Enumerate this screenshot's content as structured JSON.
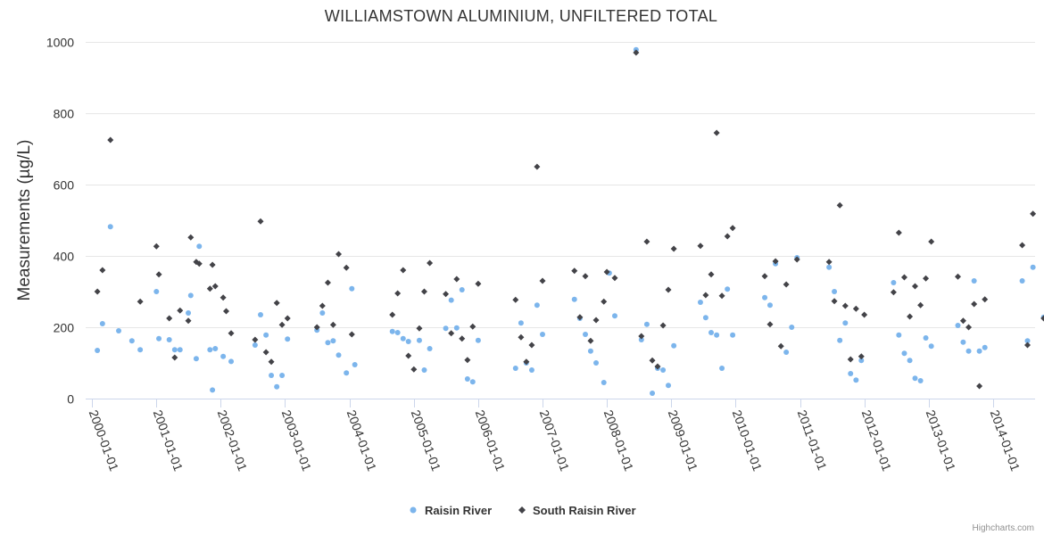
{
  "chart_data": {
    "type": "scatter",
    "title": "WILLIAMSTOWN ALUMINIUM, UNFILTERED TOTAL",
    "xlabel": "",
    "ylabel": "Measurements (µg/L)",
    "ylim": [
      0,
      1000
    ],
    "yticks": [
      "0",
      "200",
      "400",
      "600",
      "800",
      "1000"
    ],
    "xlim": [
      "2000-01-01",
      "2014-12-31"
    ],
    "xticks": [
      "2000-01-01",
      "2001-01-01",
      "2002-01-01",
      "2003-01-01",
      "2004-01-01",
      "2005-01-01",
      "2006-01-01",
      "2007-01-01",
      "2008-01-01",
      "2009-01-01",
      "2010-01-01",
      "2011-01-01",
      "2012-01-01",
      "2013-01-01",
      "2014-01-01"
    ],
    "legend_position": "bottom-center",
    "series": [
      {
        "name": "Raisin River",
        "color": "#7cb5ec",
        "marker": "circle",
        "points": [
          [
            "2000-02-01",
            135
          ],
          [
            "2000-03-01",
            210
          ],
          [
            "2000-04-15",
            482
          ],
          [
            "2000-06-01",
            190
          ],
          [
            "2000-08-15",
            162
          ],
          [
            "2000-10-01",
            137
          ],
          [
            "2001-01-01",
            300
          ],
          [
            "2001-01-15",
            168
          ],
          [
            "2001-03-15",
            165
          ],
          [
            "2001-04-15",
            137
          ],
          [
            "2001-05-15",
            137
          ],
          [
            "2001-07-01",
            240
          ],
          [
            "2001-07-15",
            289
          ],
          [
            "2001-08-15",
            112
          ],
          [
            "2001-09-01",
            427
          ],
          [
            "2001-11-01",
            137
          ],
          [
            "2001-11-15",
            24
          ],
          [
            "2001-12-01",
            140
          ],
          [
            "2002-01-15",
            118
          ],
          [
            "2002-03-01",
            104
          ],
          [
            "2002-07-15",
            150
          ],
          [
            "2002-08-15",
            235
          ],
          [
            "2002-09-15",
            178
          ],
          [
            "2002-10-15",
            65
          ],
          [
            "2002-11-15",
            33
          ],
          [
            "2002-12-15",
            65
          ],
          [
            "2003-01-15",
            167
          ],
          [
            "2003-07-01",
            192
          ],
          [
            "2003-08-01",
            240
          ],
          [
            "2003-09-01",
            157
          ],
          [
            "2003-10-01",
            162
          ],
          [
            "2003-11-01",
            122
          ],
          [
            "2003-12-15",
            72
          ],
          [
            "2004-01-15",
            308
          ],
          [
            "2004-02-01",
            95
          ],
          [
            "2004-09-01",
            188
          ],
          [
            "2004-10-01",
            185
          ],
          [
            "2004-11-01",
            168
          ],
          [
            "2004-12-01",
            160
          ],
          [
            "2005-02-01",
            163
          ],
          [
            "2005-03-01",
            80
          ],
          [
            "2005-04-01",
            140
          ],
          [
            "2005-07-01",
            197
          ],
          [
            "2005-08-01",
            276
          ],
          [
            "2005-09-01",
            198
          ],
          [
            "2005-10-01",
            305
          ],
          [
            "2005-11-01",
            55
          ],
          [
            "2005-12-01",
            47
          ],
          [
            "2006-01-01",
            163
          ],
          [
            "2006-08-01",
            85
          ],
          [
            "2006-09-01",
            212
          ],
          [
            "2006-10-01",
            100
          ],
          [
            "2006-11-01",
            80
          ],
          [
            "2006-12-01",
            262
          ],
          [
            "2007-01-01",
            180
          ],
          [
            "2007-07-01",
            278
          ],
          [
            "2007-08-01",
            225
          ],
          [
            "2007-09-01",
            180
          ],
          [
            "2007-10-01",
            133
          ],
          [
            "2007-11-01",
            100
          ],
          [
            "2007-12-15",
            45
          ],
          [
            "2008-01-15",
            352
          ],
          [
            "2008-02-15",
            232
          ],
          [
            "2008-06-15",
            978
          ],
          [
            "2008-07-15",
            165
          ],
          [
            "2008-08-15",
            208
          ],
          [
            "2008-09-15",
            15
          ],
          [
            "2008-10-15",
            85
          ],
          [
            "2008-11-15",
            80
          ],
          [
            "2008-12-15",
            37
          ],
          [
            "2009-01-15",
            148
          ],
          [
            "2009-06-15",
            270
          ],
          [
            "2009-07-15",
            227
          ],
          [
            "2009-08-15",
            185
          ],
          [
            "2009-09-15",
            178
          ],
          [
            "2009-10-15",
            85
          ],
          [
            "2009-11-15",
            307
          ],
          [
            "2009-12-15",
            178
          ],
          [
            "2010-06-15",
            283
          ],
          [
            "2010-07-15",
            262
          ],
          [
            "2010-08-15",
            378
          ],
          [
            "2010-10-15",
            130
          ],
          [
            "2010-11-15",
            200
          ],
          [
            "2010-12-15",
            395
          ],
          [
            "2011-06-15",
            368
          ],
          [
            "2011-07-15",
            300
          ],
          [
            "2011-08-15",
            163
          ],
          [
            "2011-09-15",
            212
          ],
          [
            "2011-10-15",
            70
          ],
          [
            "2011-11-15",
            52
          ],
          [
            "2011-12-15",
            107
          ],
          [
            "2012-06-15",
            325
          ],
          [
            "2012-07-15",
            178
          ],
          [
            "2012-08-15",
            127
          ],
          [
            "2012-09-15",
            107
          ],
          [
            "2012-10-15",
            57
          ],
          [
            "2012-11-15",
            50
          ],
          [
            "2012-12-15",
            170
          ],
          [
            "2013-01-15",
            147
          ],
          [
            "2013-06-15",
            205
          ],
          [
            "2013-07-15",
            158
          ],
          [
            "2013-08-15",
            133
          ],
          [
            "2013-09-15",
            330
          ],
          [
            "2013-10-15",
            133
          ],
          [
            "2013-11-15",
            143
          ],
          [
            "2014-06-15",
            330
          ],
          [
            "2014-07-15",
            162
          ],
          [
            "2014-08-15",
            368
          ],
          [
            "2014-10-15",
            228
          ],
          [
            "2014-11-15",
            48
          ],
          [
            "2014-12-15",
            182
          ]
        ]
      },
      {
        "name": "South Raisin River",
        "color": "#434348",
        "marker": "diamond",
        "points": [
          [
            "2000-02-01",
            300
          ],
          [
            "2000-03-01",
            360
          ],
          [
            "2000-04-15",
            725
          ],
          [
            "2000-10-01",
            272
          ],
          [
            "2001-01-01",
            427
          ],
          [
            "2001-01-15",
            348
          ],
          [
            "2001-03-15",
            225
          ],
          [
            "2001-04-15",
            115
          ],
          [
            "2001-05-15",
            247
          ],
          [
            "2001-07-01",
            218
          ],
          [
            "2001-07-15",
            452
          ],
          [
            "2001-08-15",
            383
          ],
          [
            "2001-09-01",
            378
          ],
          [
            "2001-11-01",
            308
          ],
          [
            "2001-11-15",
            375
          ],
          [
            "2001-12-01",
            315
          ],
          [
            "2002-01-15",
            283
          ],
          [
            "2002-03-01",
            183
          ],
          [
            "2002-02-01",
            245
          ],
          [
            "2002-07-15",
            165
          ],
          [
            "2002-08-15",
            497
          ],
          [
            "2002-09-15",
            130
          ],
          [
            "2002-10-15",
            103
          ],
          [
            "2002-11-15",
            268
          ],
          [
            "2002-12-15",
            207
          ],
          [
            "2003-01-15",
            225
          ],
          [
            "2003-07-01",
            200
          ],
          [
            "2003-08-01",
            260
          ],
          [
            "2003-09-01",
            325
          ],
          [
            "2003-10-01",
            207
          ],
          [
            "2003-11-01",
            405
          ],
          [
            "2003-12-15",
            367
          ],
          [
            "2004-01-15",
            180
          ],
          [
            "2004-09-01",
            235
          ],
          [
            "2004-10-01",
            295
          ],
          [
            "2004-11-01",
            360
          ],
          [
            "2004-12-01",
            120
          ],
          [
            "2005-01-01",
            82
          ],
          [
            "2005-02-01",
            197
          ],
          [
            "2005-03-01",
            300
          ],
          [
            "2005-04-01",
            380
          ],
          [
            "2005-07-01",
            293
          ],
          [
            "2005-08-01",
            183
          ],
          [
            "2005-09-01",
            335
          ],
          [
            "2005-10-01",
            168
          ],
          [
            "2005-11-01",
            108
          ],
          [
            "2005-12-01",
            202
          ],
          [
            "2006-01-01",
            322
          ],
          [
            "2006-08-01",
            277
          ],
          [
            "2006-09-01",
            172
          ],
          [
            "2006-10-01",
            103
          ],
          [
            "2006-11-01",
            150
          ],
          [
            "2006-12-01",
            650
          ],
          [
            "2007-01-01",
            330
          ],
          [
            "2007-07-01",
            358
          ],
          [
            "2007-08-01",
            228
          ],
          [
            "2007-09-01",
            343
          ],
          [
            "2007-10-01",
            162
          ],
          [
            "2007-11-01",
            220
          ],
          [
            "2007-12-15",
            272
          ],
          [
            "2008-01-01",
            355
          ],
          [
            "2008-02-15",
            338
          ],
          [
            "2008-06-15",
            970
          ],
          [
            "2008-07-15",
            175
          ],
          [
            "2008-08-15",
            440
          ],
          [
            "2008-09-15",
            107
          ],
          [
            "2008-10-15",
            90
          ],
          [
            "2008-11-15",
            205
          ],
          [
            "2008-12-15",
            305
          ],
          [
            "2009-01-15",
            420
          ],
          [
            "2009-06-15",
            428
          ],
          [
            "2009-07-15",
            290
          ],
          [
            "2009-08-15",
            348
          ],
          [
            "2009-09-15",
            745
          ],
          [
            "2009-10-15",
            288
          ],
          [
            "2009-11-15",
            455
          ],
          [
            "2009-12-15",
            478
          ],
          [
            "2010-06-15",
            343
          ],
          [
            "2010-07-15",
            208
          ],
          [
            "2010-08-15",
            385
          ],
          [
            "2010-09-15",
            147
          ],
          [
            "2010-10-15",
            320
          ],
          [
            "2010-12-15",
            390
          ],
          [
            "2011-06-15",
            383
          ],
          [
            "2011-07-15",
            273
          ],
          [
            "2011-08-15",
            542
          ],
          [
            "2011-09-15",
            260
          ],
          [
            "2011-10-15",
            110
          ],
          [
            "2011-11-15",
            252
          ],
          [
            "2011-12-15",
            118
          ],
          [
            "2012-01-01",
            235
          ],
          [
            "2012-06-15",
            298
          ],
          [
            "2012-07-15",
            465
          ],
          [
            "2012-08-15",
            340
          ],
          [
            "2012-09-15",
            230
          ],
          [
            "2012-10-15",
            315
          ],
          [
            "2012-11-15",
            262
          ],
          [
            "2012-12-15",
            337
          ],
          [
            "2013-01-15",
            440
          ],
          [
            "2013-06-15",
            342
          ],
          [
            "2013-07-15",
            218
          ],
          [
            "2013-08-15",
            200
          ],
          [
            "2013-09-15",
            265
          ],
          [
            "2013-10-15",
            35
          ],
          [
            "2013-11-15",
            278
          ],
          [
            "2014-06-15",
            430
          ],
          [
            "2014-07-15",
            150
          ],
          [
            "2014-08-15",
            518
          ],
          [
            "2014-10-15",
            225
          ],
          [
            "2014-11-15",
            175
          ],
          [
            "2014-12-15",
            178
          ]
        ]
      }
    ]
  },
  "credits": "Highcharts.com"
}
